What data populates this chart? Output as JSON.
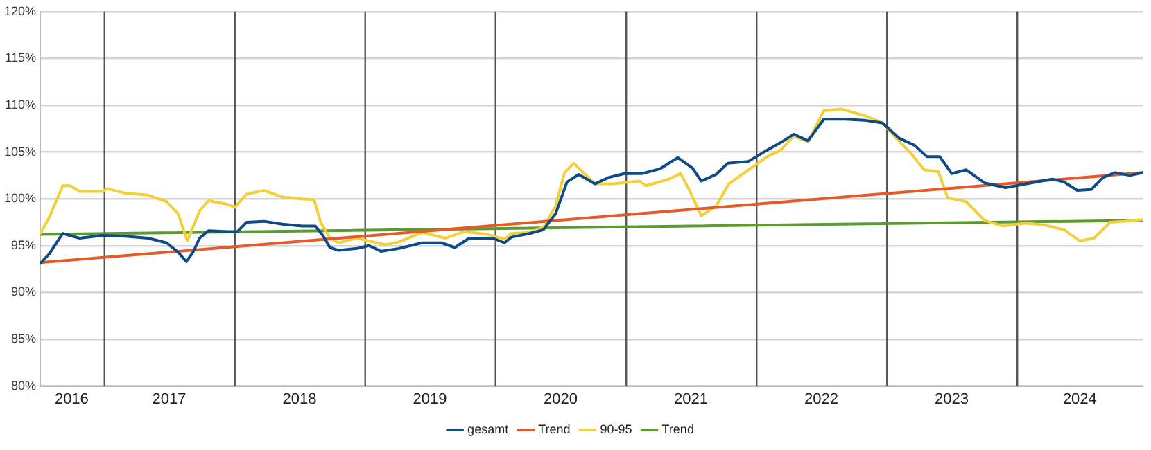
{
  "chart_data": {
    "type": "line",
    "xlim": [
      "2016-07-05",
      "2024-12-17"
    ],
    "ylim": [
      80,
      120
    ],
    "xticks": [
      {
        "value": "2016-10-01",
        "label": "2016"
      },
      {
        "value": "2017-07-01",
        "label": "2017"
      },
      {
        "value": "2018-07-01",
        "label": "2018"
      },
      {
        "value": "2019-07-01",
        "label": "2019"
      },
      {
        "value": "2020-07-01",
        "label": "2020"
      },
      {
        "value": "2021-07-01",
        "label": "2021"
      },
      {
        "value": "2022-07-01",
        "label": "2022"
      },
      {
        "value": "2023-07-01",
        "label": "2023"
      },
      {
        "value": "2024-06-24",
        "label": "2024"
      }
    ],
    "yticks": [
      {
        "value": 80,
        "label": "80%"
      },
      {
        "value": 85,
        "label": "85%"
      },
      {
        "value": 90,
        "label": "90%"
      },
      {
        "value": 95,
        "label": "95%"
      },
      {
        "value": 100,
        "label": "100%"
      },
      {
        "value": 105,
        "label": "105%"
      },
      {
        "value": 110,
        "label": "110%"
      },
      {
        "value": 115,
        "label": "115%"
      },
      {
        "value": 120,
        "label": "120%"
      }
    ],
    "grid": "y",
    "legend": "bottom",
    "marker": "none",
    "line_style": "solid",
    "ref_lines": [
      {
        "axis": "x",
        "value": "2017-01-01",
        "color": "#555555"
      },
      {
        "axis": "x",
        "value": "2018-01-01",
        "color": "#555555"
      },
      {
        "axis": "x",
        "value": "2019-01-01",
        "color": "#555555"
      },
      {
        "axis": "x",
        "value": "2020-01-01",
        "color": "#555555"
      },
      {
        "axis": "x",
        "value": "2021-01-01",
        "color": "#555555"
      },
      {
        "axis": "x",
        "value": "2022-01-01",
        "color": "#555555"
      },
      {
        "axis": "x",
        "value": "2023-01-01",
        "color": "#555555"
      },
      {
        "axis": "x",
        "value": "2024-01-01",
        "color": "#555555"
      }
    ],
    "series": [
      {
        "name": "gesamt",
        "color": "#0e4a86",
        "x": [
          "2016-07-05",
          "2016-07-30",
          "2016-09-06",
          "2016-10-23",
          "2016-12-27",
          "2017-02-28",
          "2017-05-03",
          "2017-06-24",
          "2017-07-26",
          "2017-08-18",
          "2017-09-06",
          "2017-09-24",
          "2017-10-19",
          "2017-12-13",
          "2018-01-08",
          "2018-02-03",
          "2018-03-24",
          "2018-05-14",
          "2018-07-08",
          "2018-08-14",
          "2018-09-06",
          "2018-09-24",
          "2018-10-19",
          "2018-12-09",
          "2019-01-12",
          "2019-02-14",
          "2019-04-05",
          "2019-06-09",
          "2019-08-03",
          "2019-09-09",
          "2019-10-19",
          "2019-12-24",
          "2020-01-26",
          "2020-02-14",
          "2020-04-05",
          "2020-05-14",
          "2020-06-17",
          "2020-07-19",
          "2020-08-21",
          "2020-10-05",
          "2020-11-14",
          "2020-12-27",
          "2021-02-14",
          "2021-04-05",
          "2021-05-25",
          "2021-07-05",
          "2021-07-30",
          "2021-09-09",
          "2021-10-12",
          "2021-12-09",
          "2022-01-30",
          "2022-03-09",
          "2022-04-15",
          "2022-05-25",
          "2022-07-08",
          "2022-09-06",
          "2022-10-30",
          "2022-12-20",
          "2023-02-03",
          "2023-03-20",
          "2023-04-23",
          "2023-05-29",
          "2023-07-01",
          "2023-08-11",
          "2023-10-01",
          "2023-11-29",
          "2024-01-26",
          "2024-04-08",
          "2024-05-11",
          "2024-06-17",
          "2024-07-26",
          "2024-08-29",
          "2024-10-01",
          "2024-11-11",
          "2024-12-17"
        ],
        "values": [
          93.1,
          94.1,
          96.3,
          95.8,
          96.1,
          96.0,
          95.8,
          95.3,
          94.3,
          93.3,
          94.3,
          95.8,
          96.6,
          96.5,
          96.5,
          97.5,
          97.6,
          97.3,
          97.1,
          97.1,
          96.0,
          94.8,
          94.5,
          94.7,
          95.0,
          94.4,
          94.7,
          95.3,
          95.3,
          94.8,
          95.8,
          95.8,
          95.3,
          95.9,
          96.3,
          96.7,
          98.4,
          101.8,
          102.6,
          101.6,
          102.3,
          102.7,
          102.7,
          103.2,
          104.4,
          103.3,
          101.9,
          102.6,
          103.8,
          104.0,
          105.2,
          106.0,
          106.9,
          106.2,
          108.5,
          108.5,
          108.4,
          108.1,
          106.5,
          105.7,
          104.5,
          104.5,
          102.7,
          103.1,
          101.7,
          101.2,
          101.6,
          102.1,
          101.8,
          100.9,
          101.0,
          102.3,
          102.8,
          102.5,
          102.8
        ]
      },
      {
        "name": "Trend",
        "color": "#e65a2a",
        "x": [
          "2016-07-05",
          "2024-12-17"
        ],
        "values": [
          93.2,
          102.8
        ]
      },
      {
        "name": "90-95",
        "color": "#f3d03a",
        "x": [
          "2016-07-05",
          "2016-07-30",
          "2016-09-06",
          "2016-09-27",
          "2016-10-23",
          "2016-12-27",
          "2017-01-08",
          "2017-02-28",
          "2017-05-03",
          "2017-06-24",
          "2017-07-26",
          "2017-08-21",
          "2017-09-24",
          "2017-10-19",
          "2017-12-13",
          "2018-01-01",
          "2018-02-03",
          "2018-03-24",
          "2018-05-14",
          "2018-07-08",
          "2018-08-11",
          "2018-08-29",
          "2018-09-24",
          "2018-10-19",
          "2018-12-09",
          "2019-02-03",
          "2019-02-28",
          "2019-04-05",
          "2019-06-09",
          "2019-08-14",
          "2019-10-05",
          "2019-12-09",
          "2020-01-26",
          "2020-02-14",
          "2020-04-05",
          "2020-05-14",
          "2020-06-17",
          "2020-07-12",
          "2020-08-07",
          "2020-10-05",
          "2020-11-25",
          "2021-02-07",
          "2021-02-25",
          "2021-04-30",
          "2021-06-02",
          "2021-06-27",
          "2021-07-30",
          "2021-09-09",
          "2021-10-15",
          "2021-12-09",
          "2022-01-12",
          "2022-01-30",
          "2022-03-09",
          "2022-04-15",
          "2022-05-25",
          "2022-07-08",
          "2022-08-25",
          "2022-10-30",
          "2022-12-20",
          "2023-01-26",
          "2023-03-06",
          "2023-04-15",
          "2023-05-25",
          "2023-06-20",
          "2023-08-11",
          "2023-10-01",
          "2023-11-21",
          "2024-01-26",
          "2024-03-17",
          "2024-05-11",
          "2024-06-24",
          "2024-08-03",
          "2024-09-17",
          "2024-10-26",
          "2024-12-17"
        ],
        "values": [
          96.3,
          98.0,
          101.4,
          101.4,
          100.8,
          100.8,
          101.1,
          100.6,
          100.4,
          99.7,
          98.4,
          95.5,
          98.7,
          99.8,
          99.4,
          99.1,
          100.5,
          100.9,
          100.2,
          100.0,
          99.9,
          97.5,
          95.8,
          95.3,
          95.8,
          95.3,
          95.1,
          95.4,
          96.4,
          95.8,
          96.5,
          96.2,
          95.7,
          96.3,
          96.4,
          97.0,
          99.2,
          102.8,
          103.8,
          101.6,
          101.6,
          101.9,
          101.4,
          102.1,
          102.7,
          100.9,
          98.2,
          99.2,
          101.6,
          103.1,
          104.0,
          104.5,
          105.2,
          106.7,
          106.1,
          109.4,
          109.6,
          108.9,
          108.1,
          106.5,
          105.0,
          103.1,
          102.9,
          100.1,
          99.7,
          97.7,
          97.1,
          97.4,
          97.2,
          96.7,
          95.5,
          95.8,
          97.5,
          97.6,
          97.8
        ]
      },
      {
        "name": "Trend",
        "color": "#5b9a2c",
        "x": [
          "2016-07-05",
          "2024-12-17"
        ],
        "values": [
          96.2,
          97.7
        ]
      }
    ]
  }
}
